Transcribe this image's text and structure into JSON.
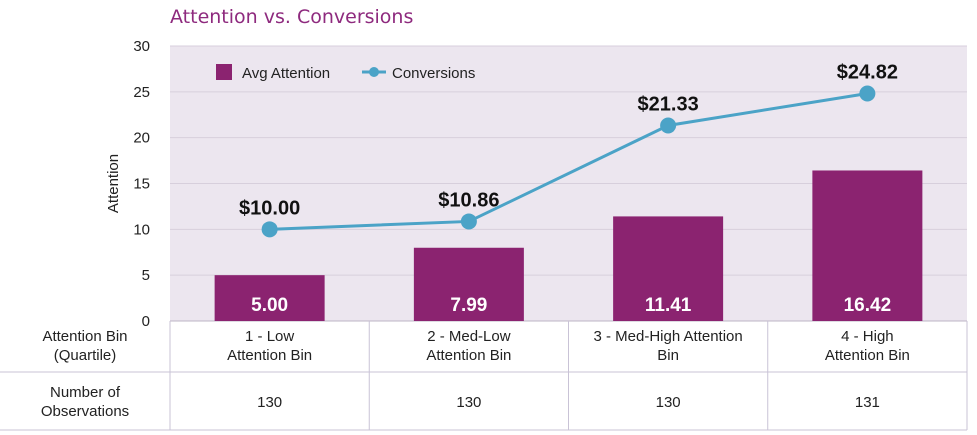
{
  "title": "Attention vs. Conversions",
  "colors": {
    "bar": "#8b2370",
    "line": "#4ba3c7",
    "plot_bg": "#ece6ef",
    "table_line": "#c9c3d6"
  },
  "chart_data": {
    "type": "bar",
    "ylabel": "Attention",
    "ylim": [
      0,
      30
    ],
    "yticks": [
      0,
      5,
      10,
      15,
      20,
      25,
      30
    ],
    "legend_position": "top-left",
    "series": [
      {
        "name": "Avg Attention",
        "type": "bar",
        "values": [
          5.0,
          7.99,
          11.41,
          16.42
        ],
        "labels": [
          "5.00",
          "7.99",
          "11.41",
          "16.42"
        ]
      },
      {
        "name": "Conversions",
        "type": "line",
        "values": [
          10.0,
          10.86,
          21.33,
          24.82
        ],
        "labels": [
          "$10.00",
          "$10.86",
          "$21.33",
          "$24.82"
        ]
      }
    ]
  },
  "table": {
    "row1_header": [
      "Attention Bin",
      "(Quartile)"
    ],
    "categories": [
      [
        "1 - Low",
        "Attention Bin"
      ],
      [
        "2 - Med-Low",
        "Attention Bin"
      ],
      [
        "3 - Med-High Attention",
        "Bin"
      ],
      [
        "4 - High",
        "Attention Bin"
      ]
    ],
    "row2_header": [
      "Number of",
      "Observations"
    ],
    "observations": [
      "130",
      "130",
      "130",
      "131"
    ]
  }
}
